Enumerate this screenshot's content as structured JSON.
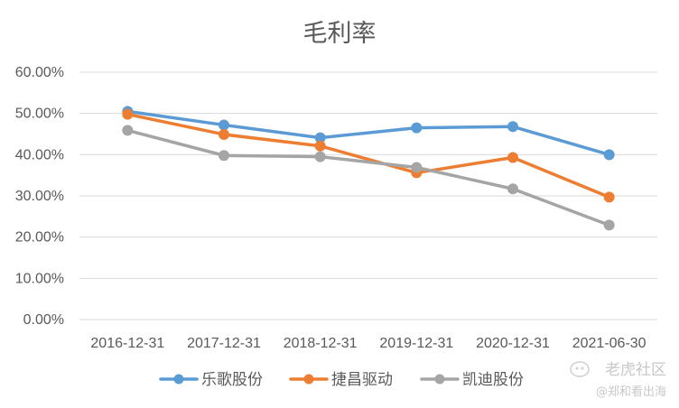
{
  "chart_data": {
    "type": "line",
    "title": "毛利率",
    "categories": [
      "2016-12-31",
      "2017-12-31",
      "2018-12-31",
      "2019-12-31",
      "2020-12-31",
      "2021-06-30"
    ],
    "y_ticks": [
      "0.00%",
      "10.00%",
      "20.00%",
      "30.00%",
      "40.00%",
      "50.00%",
      "60.00%"
    ],
    "ylim": [
      0,
      60
    ],
    "y_unit": "%",
    "grid": true,
    "legend_position": "bottom",
    "series": [
      {
        "name": "乐歌股份",
        "color": "#5b9bd5",
        "values": [
          50.5,
          47.2,
          44.1,
          46.5,
          46.8,
          40.0
        ]
      },
      {
        "name": "捷昌驱动",
        "color": "#ed7d31",
        "values": [
          49.8,
          44.9,
          42.1,
          35.6,
          39.3,
          29.7
        ]
      },
      {
        "name": "凯迪股份",
        "color": "#a5a5a5",
        "values": [
          45.9,
          39.8,
          39.5,
          36.9,
          31.7,
          22.9
        ]
      }
    ]
  },
  "watermark": {
    "brand": "老虎社区",
    "handle": "@郑和看出海"
  }
}
